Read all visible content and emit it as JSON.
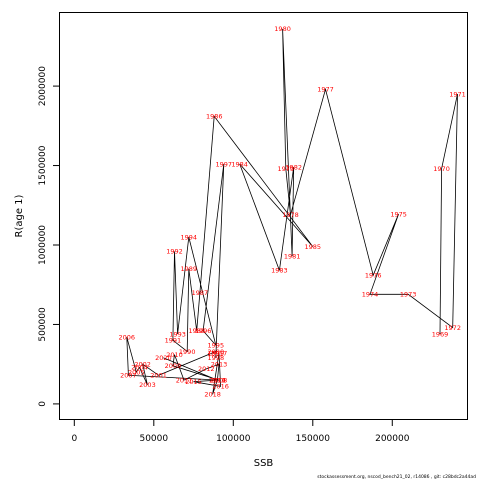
{
  "chart_data": {
    "type": "scatter",
    "xlabel": "SSB",
    "ylabel": "R(age 1)",
    "xlim": [
      -9000,
      247000
    ],
    "ylim": [
      -95000,
      2460000
    ],
    "x_ticks": [
      0,
      50000,
      100000,
      150000,
      200000
    ],
    "x_tick_labels": [
      "0",
      "50000",
      "100000",
      "150000",
      "200000"
    ],
    "y_ticks": [
      0,
      500000,
      1000000,
      1500000,
      2000000
    ],
    "y_tick_labels": [
      "0",
      "500000",
      "1000000",
      "1500000",
      "2000000"
    ],
    "grid": false,
    "connected": true,
    "line_color": "#000000",
    "label_color": "#ff0000",
    "points": [
      {
        "year": "1969",
        "x": 230000,
        "y": 440000
      },
      {
        "year": "1970",
        "x": 231000,
        "y": 1480000
      },
      {
        "year": "1971",
        "x": 241000,
        "y": 1950000
      },
      {
        "year": "1972",
        "x": 238000,
        "y": 480000
      },
      {
        "year": "1973",
        "x": 210000,
        "y": 690000
      },
      {
        "year": "1974",
        "x": 186000,
        "y": 690000
      },
      {
        "year": "1975",
        "x": 204000,
        "y": 1195000
      },
      {
        "year": "1976",
        "x": 188000,
        "y": 810000
      },
      {
        "year": "1977",
        "x": 158000,
        "y": 1980000
      },
      {
        "year": "1978",
        "x": 136000,
        "y": 1190000
      },
      {
        "year": "1979",
        "x": 133000,
        "y": 1480000
      },
      {
        "year": "1980",
        "x": 131000,
        "y": 2360000
      },
      {
        "year": "1981",
        "x": 137000,
        "y": 930000
      },
      {
        "year": "1982",
        "x": 138000,
        "y": 1490000
      },
      {
        "year": "1983",
        "x": 129000,
        "y": 840000
      },
      {
        "year": "1984",
        "x": 104000,
        "y": 1510000
      },
      {
        "year": "1985",
        "x": 150000,
        "y": 990000
      },
      {
        "year": "1986",
        "x": 88000,
        "y": 1810000
      },
      {
        "year": "1987",
        "x": 79000,
        "y": 700000
      },
      {
        "year": "1988",
        "x": 77000,
        "y": 460000
      },
      {
        "year": "1989",
        "x": 72000,
        "y": 850000
      },
      {
        "year": "1990",
        "x": 71000,
        "y": 330000
      },
      {
        "year": "1991",
        "x": 62000,
        "y": 400000
      },
      {
        "year": "1992",
        "x": 63000,
        "y": 960000
      },
      {
        "year": "1993",
        "x": 65000,
        "y": 440000
      },
      {
        "year": "1994",
        "x": 72000,
        "y": 1050000
      },
      {
        "year": "1995",
        "x": 89000,
        "y": 370000
      },
      {
        "year": "1996",
        "x": 81000,
        "y": 460000
      },
      {
        "year": "1997",
        "x": 94000,
        "y": 1510000
      },
      {
        "year": "1998",
        "x": 89000,
        "y": 290000
      },
      {
        "year": "1999",
        "x": 89000,
        "y": 320000
      },
      {
        "year": "2000",
        "x": 89000,
        "y": 330000
      },
      {
        "year": "2001",
        "x": 53000,
        "y": 180000
      },
      {
        "year": "2002",
        "x": 43000,
        "y": 250000
      },
      {
        "year": "2003",
        "x": 46000,
        "y": 120000
      },
      {
        "year": "2004",
        "x": 41000,
        "y": 230000
      },
      {
        "year": "2005",
        "x": 39000,
        "y": 200000
      },
      {
        "year": "2006",
        "x": 33000,
        "y": 420000
      },
      {
        "year": "2007",
        "x": 34000,
        "y": 180000
      },
      {
        "year": "2008",
        "x": 91000,
        "y": 150000
      },
      {
        "year": "2009",
        "x": 62000,
        "y": 240000
      },
      {
        "year": "2010",
        "x": 63000,
        "y": 310000
      },
      {
        "year": "2011",
        "x": 69000,
        "y": 150000
      },
      {
        "year": "2012",
        "x": 83000,
        "y": 220000
      },
      {
        "year": "2013",
        "x": 91000,
        "y": 250000
      },
      {
        "year": "2014",
        "x": 90000,
        "y": 150000
      },
      {
        "year": "2015",
        "x": 75000,
        "y": 140000
      },
      {
        "year": "2016",
        "x": 92000,
        "y": 110000
      },
      {
        "year": "2017",
        "x": 91000,
        "y": 320000
      },
      {
        "year": "2018",
        "x": 87000,
        "y": 60000
      },
      {
        "year": "2019",
        "x": 90000,
        "y": 150000
      },
      {
        "year": "2020",
        "x": 56000,
        "y": 290000
      }
    ]
  },
  "footer": "stockassessment.org, nscod_bench21_02, r14086 , git: c28bdc2a44ad"
}
